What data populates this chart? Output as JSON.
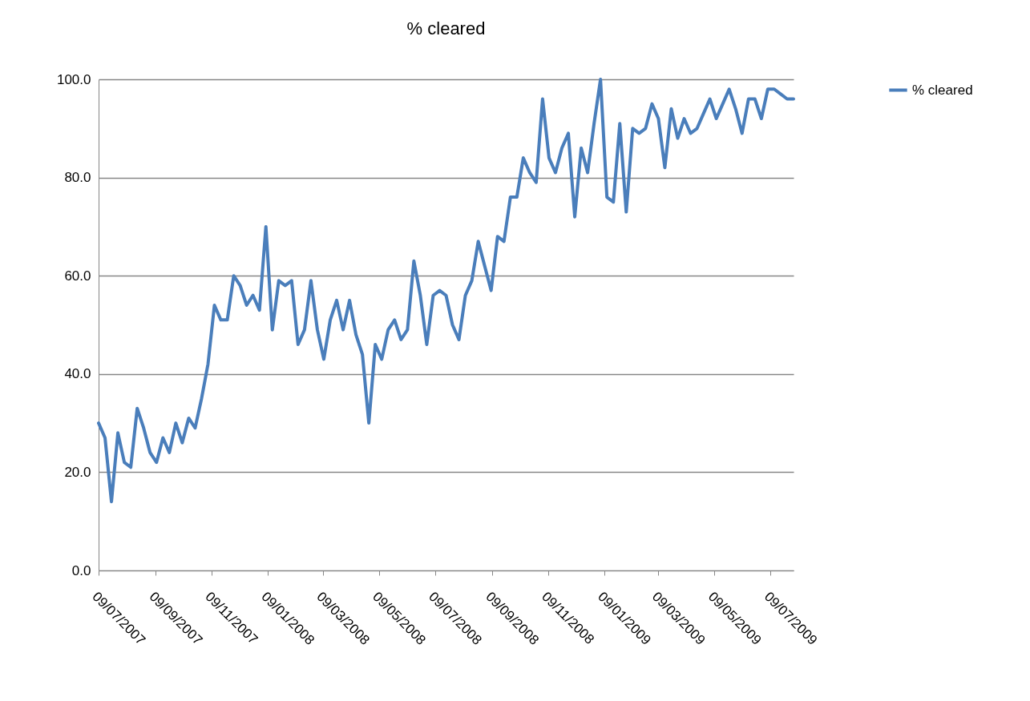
{
  "chart_data": {
    "type": "line",
    "title": "% cleared",
    "x": [
      "2007-07-09",
      "2007-07-16",
      "2007-07-23",
      "2007-07-30",
      "2007-08-06",
      "2007-08-13",
      "2007-08-20",
      "2007-08-27",
      "2007-09-03",
      "2007-09-10",
      "2007-09-17",
      "2007-09-24",
      "2007-10-01",
      "2007-10-08",
      "2007-10-15",
      "2007-10-22",
      "2007-10-29",
      "2007-11-05",
      "2007-11-12",
      "2007-11-19",
      "2007-11-26",
      "2007-12-03",
      "2007-12-10",
      "2007-12-17",
      "2007-12-24",
      "2007-12-31",
      "2008-01-07",
      "2008-01-14",
      "2008-01-21",
      "2008-01-28",
      "2008-02-04",
      "2008-02-11",
      "2008-02-18",
      "2008-02-25",
      "2008-03-03",
      "2008-03-10",
      "2008-03-17",
      "2008-03-24",
      "2008-03-31",
      "2008-04-07",
      "2008-04-14",
      "2008-04-21",
      "2008-04-28",
      "2008-05-05",
      "2008-05-12",
      "2008-05-19",
      "2008-05-26",
      "2008-06-02",
      "2008-06-09",
      "2008-06-16",
      "2008-06-23",
      "2008-06-30",
      "2008-07-07",
      "2008-07-14",
      "2008-07-21",
      "2008-07-28",
      "2008-08-04",
      "2008-08-11",
      "2008-08-18",
      "2008-08-25",
      "2008-09-01",
      "2008-09-08",
      "2008-09-15",
      "2008-09-22",
      "2008-09-29",
      "2008-10-06",
      "2008-10-13",
      "2008-10-20",
      "2008-10-27",
      "2008-11-03",
      "2008-11-10",
      "2008-11-17",
      "2008-11-24",
      "2008-12-01",
      "2008-12-08",
      "2008-12-15",
      "2008-12-22",
      "2008-12-29",
      "2009-01-05",
      "2009-01-12",
      "2009-01-19",
      "2009-01-26",
      "2009-02-02",
      "2009-02-09",
      "2009-02-16",
      "2009-02-23",
      "2009-03-02",
      "2009-03-09",
      "2009-03-16",
      "2009-03-23",
      "2009-03-30",
      "2009-04-06",
      "2009-04-13",
      "2009-04-20",
      "2009-04-27",
      "2009-05-04",
      "2009-05-11",
      "2009-05-18",
      "2009-05-25",
      "2009-06-01",
      "2009-06-08",
      "2009-06-15",
      "2009-06-22",
      "2009-06-29",
      "2009-07-06",
      "2009-07-13",
      "2009-07-20",
      "2009-07-27",
      "2009-08-03"
    ],
    "series": [
      {
        "name": "% cleared",
        "color": "#4a7ebb",
        "values": [
          30,
          27,
          14,
          28,
          22,
          21,
          33,
          29,
          24,
          22,
          27,
          24,
          30,
          26,
          31,
          29,
          35,
          42,
          54,
          51,
          51,
          60,
          58,
          54,
          56,
          53,
          70,
          49,
          59,
          58,
          59,
          46,
          49,
          59,
          49,
          43,
          51,
          55,
          49,
          55,
          48,
          44,
          30,
          46,
          43,
          49,
          51,
          47,
          49,
          63,
          56,
          46,
          56,
          57,
          56,
          50,
          47,
          56,
          59,
          67,
          62,
          57,
          68,
          67,
          76,
          76,
          84,
          81,
          79,
          96,
          84,
          81,
          86,
          89,
          72,
          86,
          81,
          91,
          100,
          76,
          75,
          91,
          73,
          90,
          89,
          90,
          95,
          92,
          82,
          94,
          88,
          92,
          89,
          90,
          93,
          96,
          92,
          95,
          98,
          94,
          89,
          96,
          96,
          92,
          98,
          98,
          97,
          96,
          96
        ]
      }
    ],
    "xlim": [
      "2007-07-09",
      "2009-08-03"
    ],
    "xticks": [
      {
        "value": "2007-07-09",
        "label": "09/07/2007"
      },
      {
        "value": "2007-09-09",
        "label": "09/09/2007"
      },
      {
        "value": "2007-11-09",
        "label": "09/11/2007"
      },
      {
        "value": "2008-01-09",
        "label": "09/01/2008"
      },
      {
        "value": "2008-03-09",
        "label": "09/03/2008"
      },
      {
        "value": "2008-05-09",
        "label": "09/05/2008"
      },
      {
        "value": "2008-07-09",
        "label": "09/07/2008"
      },
      {
        "value": "2008-09-09",
        "label": "09/09/2008"
      },
      {
        "value": "2008-11-09",
        "label": "09/11/2008"
      },
      {
        "value": "2009-01-09",
        "label": "09/01/2009"
      },
      {
        "value": "2009-03-09",
        "label": "09/03/2009"
      },
      {
        "value": "2009-05-09",
        "label": "09/05/2009"
      },
      {
        "value": "2009-07-09",
        "label": "09/07/2009"
      }
    ],
    "ylim": [
      0,
      100
    ],
    "yticks": [
      {
        "value": 0,
        "label": "0.0"
      },
      {
        "value": 20,
        "label": "20.0"
      },
      {
        "value": 40,
        "label": "40.0"
      },
      {
        "value": 60,
        "label": "60.0"
      },
      {
        "value": 80,
        "label": "80.0"
      },
      {
        "value": 100,
        "label": "100.0"
      }
    ],
    "grid": "y",
    "legend": "right"
  }
}
